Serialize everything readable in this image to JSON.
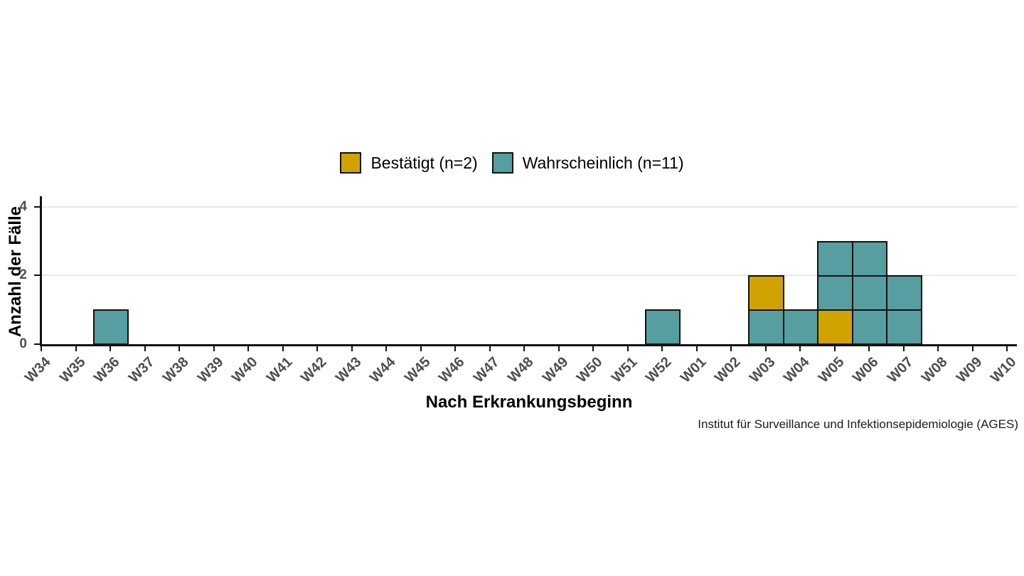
{
  "page": {
    "background": "#ffffff"
  },
  "legend": {
    "items": [
      {
        "key": "bestaetigt",
        "label": "Bestätigt (n=2)",
        "color": "#D1A300"
      },
      {
        "key": "wahrscheinlich",
        "label": "Wahrscheinlich (n=11)",
        "color": "#569EA0"
      }
    ]
  },
  "chart_data": {
    "type": "bar",
    "stacked": true,
    "title": "",
    "xlabel": "Nach Erkrankungsbeginn",
    "ylabel": "Anzahl der Fälle",
    "caption": "Institut für Surveillance und Infektionsepidemiologie (AGES)",
    "categories": [
      "W34",
      "W35",
      "W36",
      "W37",
      "W38",
      "W39",
      "W40",
      "W41",
      "W42",
      "W43",
      "W44",
      "W45",
      "W46",
      "W47",
      "W48",
      "W49",
      "W50",
      "W51",
      "W52",
      "W01",
      "W02",
      "W03",
      "W04",
      "W05",
      "W06",
      "W07",
      "W08",
      "W09",
      "W10"
    ],
    "y_ticks": [
      0,
      2,
      4
    ],
    "ylim": [
      0,
      4.3
    ],
    "grid": "horizontal",
    "legend_position": "top-center",
    "series": [
      {
        "name": "Bestätigt (n=2)",
        "key": "bestaetigt",
        "color": "#D1A300",
        "values": [
          0,
          0,
          0,
          0,
          0,
          0,
          0,
          0,
          0,
          0,
          0,
          0,
          0,
          0,
          0,
          0,
          0,
          0,
          0,
          0,
          0,
          1,
          0,
          1,
          0,
          0,
          0,
          0,
          0
        ]
      },
      {
        "name": "Wahrscheinlich (n=11)",
        "key": "wahrscheinlich",
        "color": "#569EA0",
        "values": [
          0,
          0,
          1,
          0,
          0,
          0,
          0,
          0,
          0,
          0,
          0,
          0,
          0,
          0,
          0,
          0,
          0,
          0,
          1,
          0,
          0,
          1,
          1,
          2,
          3,
          2,
          0,
          0,
          0
        ]
      }
    ],
    "bars": [
      {
        "category": "W36",
        "cells": [
          "wahrscheinlich"
        ]
      },
      {
        "category": "W52",
        "cells": [
          "wahrscheinlich"
        ]
      },
      {
        "category": "W03",
        "cells": [
          "wahrscheinlich",
          "bestaetigt"
        ]
      },
      {
        "category": "W04",
        "cells": [
          "wahrscheinlich"
        ]
      },
      {
        "category": "W05",
        "cells": [
          "bestaetigt",
          "wahrscheinlich",
          "wahrscheinlich"
        ]
      },
      {
        "category": "W06",
        "cells": [
          "wahrscheinlich",
          "wahrscheinlich",
          "wahrscheinlich"
        ]
      },
      {
        "category": "W07",
        "cells": [
          "wahrscheinlich",
          "wahrscheinlich"
        ]
      }
    ],
    "colors": {
      "bestaetigt": "#D1A300",
      "wahrscheinlich": "#569EA0",
      "bar_stroke": "#111111",
      "grid": "#E9E9E9",
      "axis": "#111111",
      "tick_label": "#4D4D4D"
    }
  }
}
